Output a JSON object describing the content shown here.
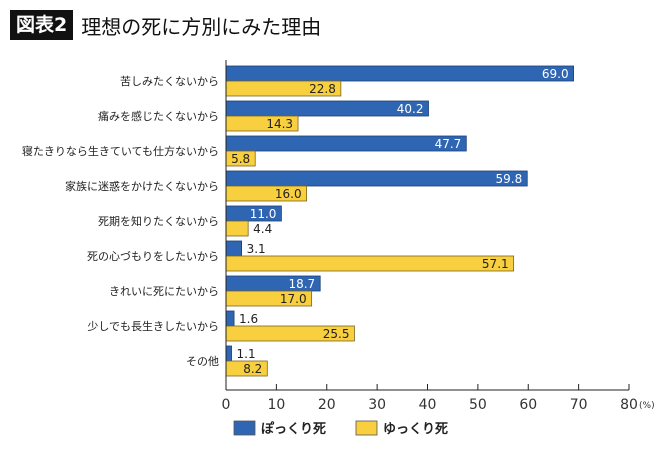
{
  "header": {
    "badge": "図表2",
    "title": "理想の死に方別にみた理由"
  },
  "chart_data": {
    "type": "bar",
    "orientation": "horizontal",
    "categories": [
      "苦しみたくないから",
      "痛みを感じたくないから",
      "寝たきりなら生きていても仕方ないから",
      "家族に迷惑をかけたくないから",
      "死期を知りたくないから",
      "死の心づもりをしたいから",
      "きれいに死にたいから",
      "少しでも長生きしたいから",
      "その他"
    ],
    "series": [
      {
        "name": "ぽっくり死",
        "color": "#2f66b4",
        "values": [
          69.0,
          40.2,
          47.7,
          59.8,
          11.0,
          3.1,
          18.7,
          1.6,
          1.1
        ]
      },
      {
        "name": "ゆっくり死",
        "color": "#f8cf3e",
        "values": [
          22.8,
          14.3,
          5.8,
          16.0,
          4.4,
          57.1,
          17.0,
          25.5,
          8.2
        ]
      }
    ],
    "xlim": [
      0,
      80
    ],
    "xticks": [
      "0",
      "10",
      "20",
      "30",
      "40",
      "50",
      "60",
      "70",
      "80"
    ],
    "xunit": "(%)",
    "legend": "bottom",
    "grid": false
  }
}
